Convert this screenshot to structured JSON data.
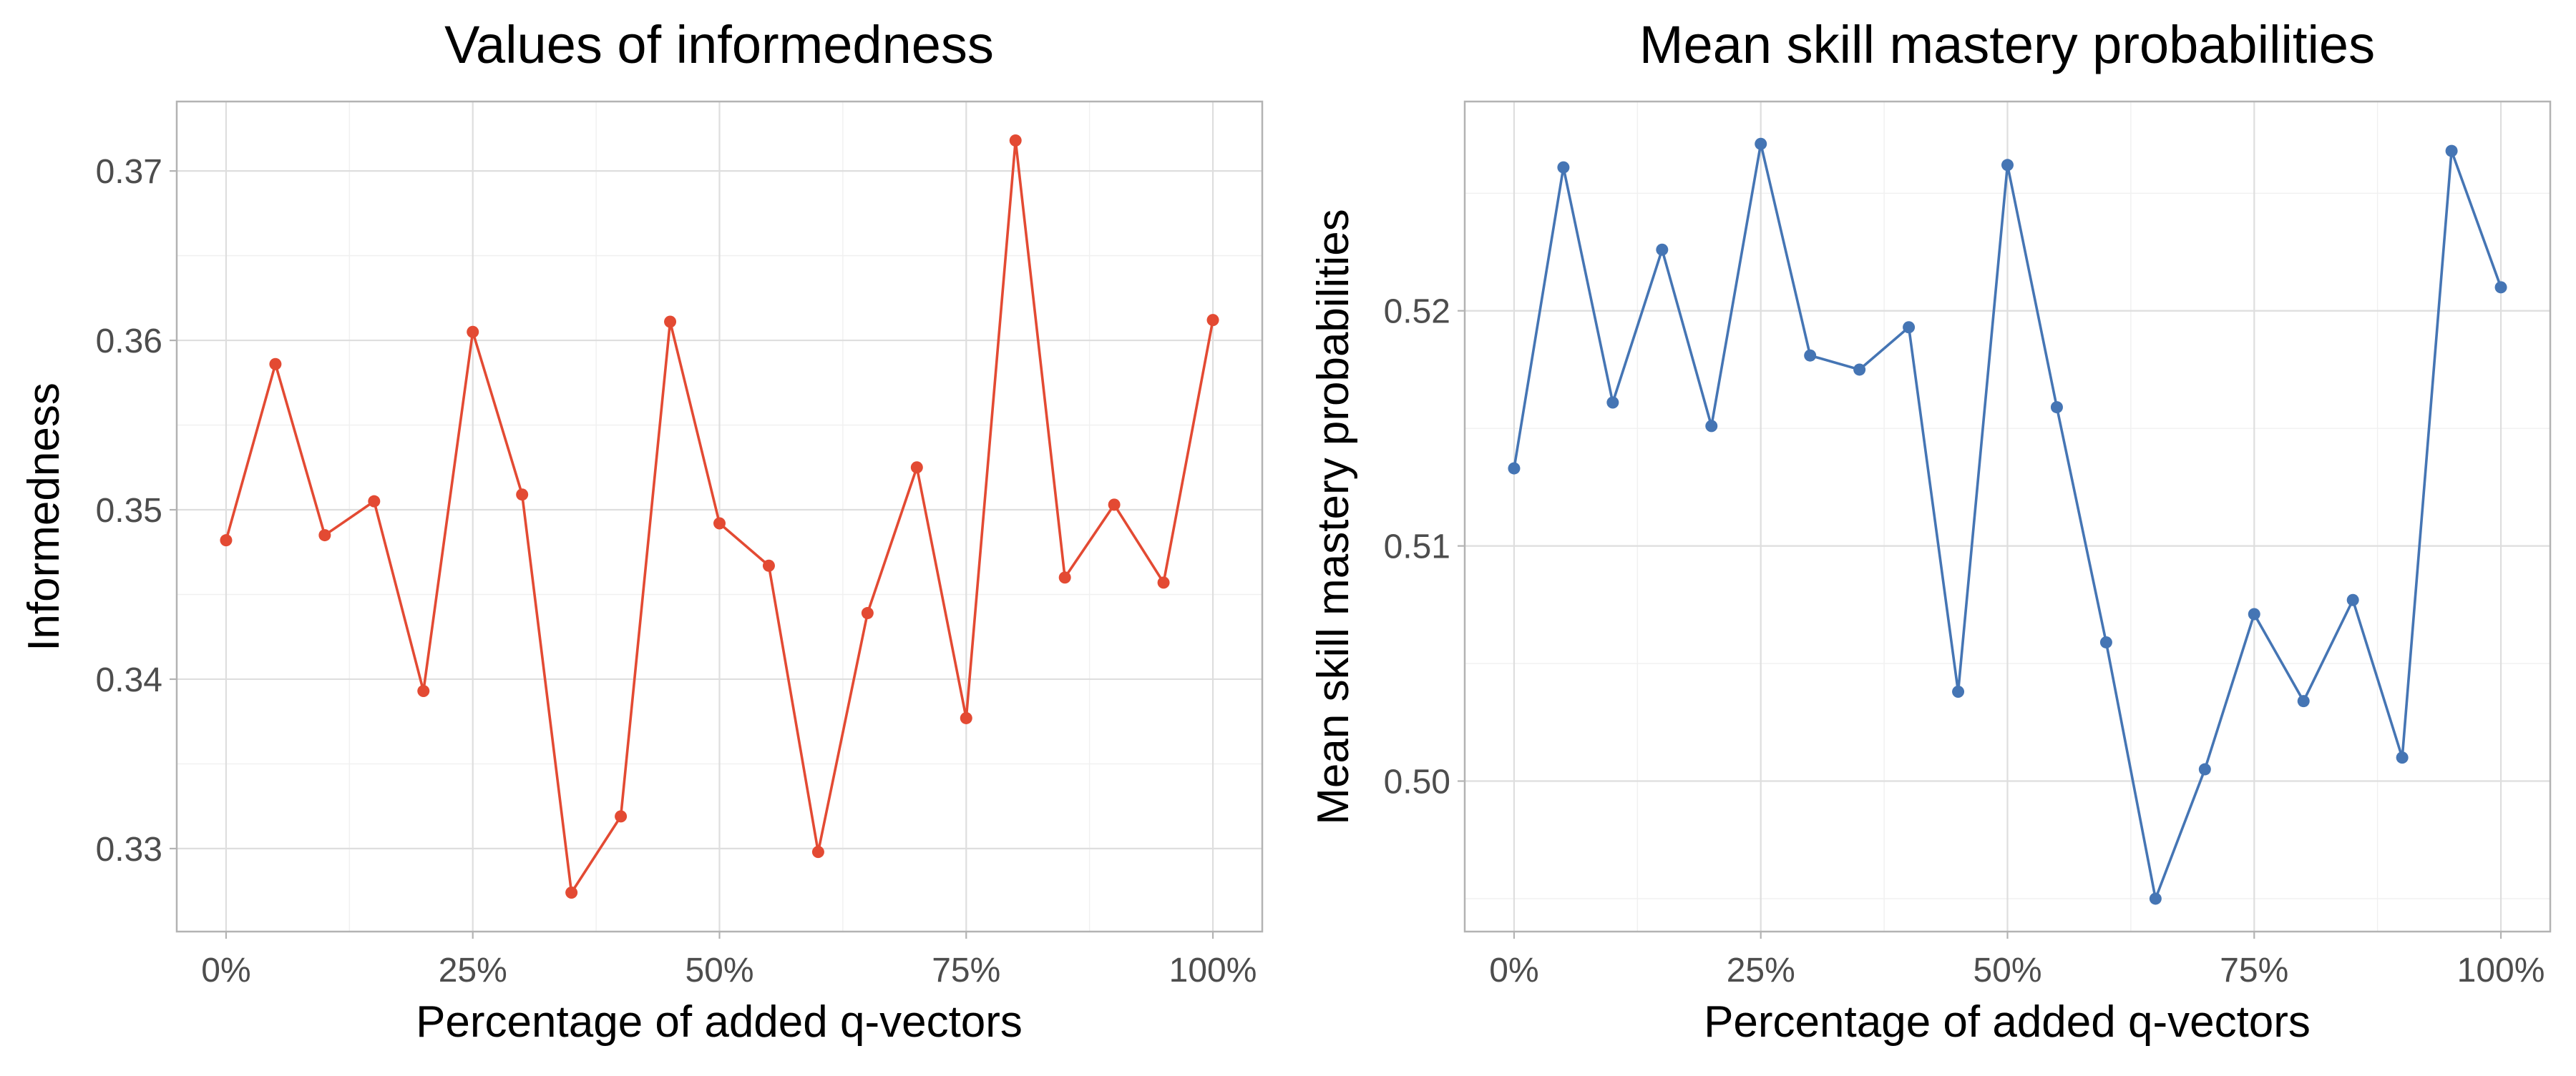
{
  "chart_data": [
    {
      "type": "line",
      "title": "Values of informedness",
      "xlabel": "Percentage of added q-vectors",
      "ylabel": "Informedness",
      "x": [
        0,
        5,
        10,
        15,
        20,
        25,
        30,
        35,
        40,
        45,
        50,
        55,
        60,
        65,
        70,
        75,
        80,
        85,
        90,
        95,
        100
      ],
      "series": [
        {
          "color": "#e34a33",
          "values": [
            0.3482,
            0.3586,
            0.3485,
            0.3505,
            0.3393,
            0.3605,
            0.3509,
            0.3274,
            0.3319,
            0.3611,
            0.3492,
            0.3467,
            0.3298,
            0.3439,
            0.3525,
            0.3377,
            0.3718,
            0.346,
            0.3503,
            0.3457,
            0.3612
          ]
        }
      ],
      "xlim": [
        -5,
        105
      ],
      "ylim": [
        0.3251,
        0.3741
      ],
      "x_ticks": [
        0,
        25,
        50,
        75,
        100
      ],
      "x_tick_labels": [
        "0%",
        "25%",
        "50%",
        "75%",
        "100%"
      ],
      "y_ticks": [
        0.33,
        0.34,
        0.35,
        0.36,
        0.37
      ],
      "y_tick_labels": [
        "0.33",
        "0.34",
        "0.35",
        "0.36",
        "0.37"
      ],
      "grid": true,
      "legend": false
    },
    {
      "type": "line",
      "title": "Mean skill mastery probabilities",
      "xlabel": "Percentage of added q-vectors",
      "ylabel": "Mean skill mastery probabilities",
      "x": [
        0,
        5,
        10,
        15,
        20,
        25,
        30,
        35,
        40,
        45,
        50,
        55,
        60,
        65,
        70,
        75,
        80,
        85,
        90,
        95,
        100
      ],
      "series": [
        {
          "color": "#4575b4",
          "values": [
            0.5133,
            0.5261,
            0.5161,
            0.5226,
            0.5151,
            0.5271,
            0.5181,
            0.5175,
            0.5193,
            0.5038,
            0.5262,
            0.5159,
            0.5059,
            0.495,
            0.5005,
            0.5071,
            0.5034,
            0.5077,
            0.501,
            0.5268,
            0.521
          ]
        }
      ],
      "xlim": [
        -5,
        105
      ],
      "ylim": [
        0.4936,
        0.5289
      ],
      "x_ticks": [
        0,
        25,
        50,
        75,
        100
      ],
      "x_tick_labels": [
        "0%",
        "25%",
        "50%",
        "75%",
        "100%"
      ],
      "y_ticks": [
        0.5,
        0.51,
        0.52
      ],
      "y_tick_labels": [
        "0.50",
        "0.51",
        "0.52"
      ],
      "grid": true,
      "legend": false
    }
  ]
}
